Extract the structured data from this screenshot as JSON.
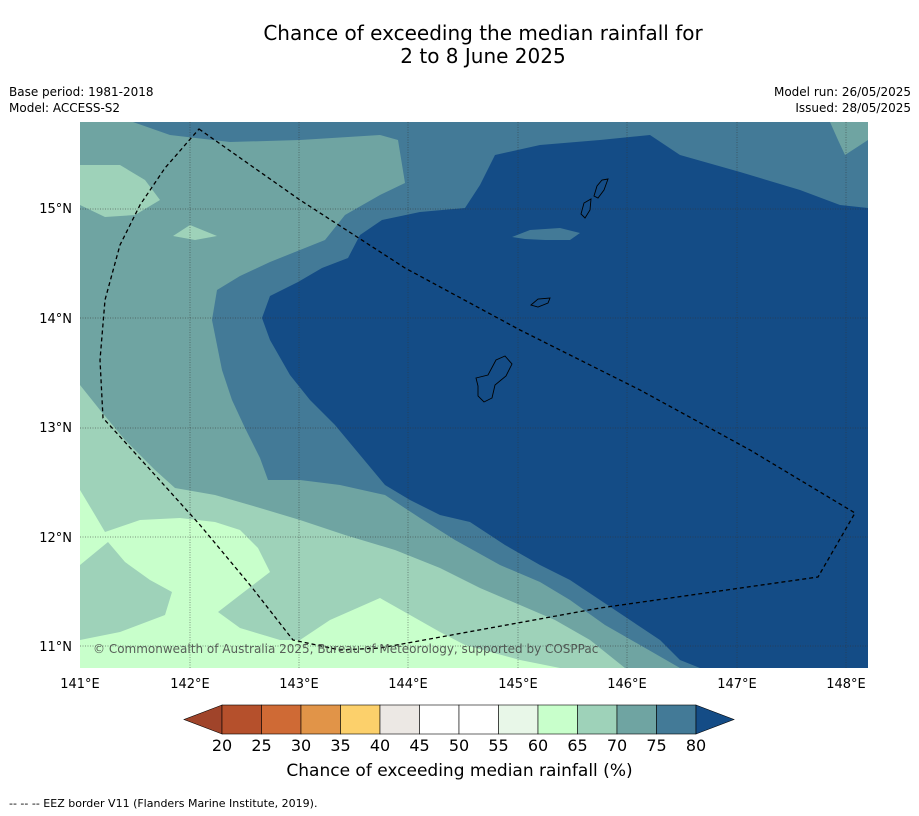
{
  "title_line1": "Chance of exceeding the median rainfall for",
  "title_line2": "2 to 8 June 2025",
  "base_period": "Base period: 1981-2018",
  "model": "Model: ACCESS-S2",
  "model_run": "Model run: 26/05/2025",
  "issued": "Issued: 28/05/2025",
  "copyright": "© Commonwealth of Australia 2025, Bureau of Meteorology, supported by COSPPac",
  "lon_labels": [
    "141°E",
    "142°E",
    "143°E",
    "144°E",
    "145°E",
    "146°E",
    "147°E",
    "148°E"
  ],
  "lat_labels": [
    "15°N",
    "14°N",
    "13°N",
    "12°N",
    "11°N"
  ],
  "colorbar": {
    "title": "Chance of exceeding median rainfall (%)",
    "ticks": [
      "20",
      "25",
      "30",
      "35",
      "40",
      "45",
      "50",
      "55",
      "60",
      "65",
      "70",
      "75",
      "80"
    ],
    "colors": {
      "under": "#a0442a",
      "bins": [
        "#b5502c",
        "#cf6a35",
        "#e19448",
        "#fcd06b",
        "#ece8e4",
        "#ffffff",
        "#ffffff",
        "#e8f7e8",
        "#c8ffcb",
        "#9ed2b9",
        "#6fa4a2",
        "#437a97"
      ],
      "over": "#144c86"
    }
  },
  "footer": "--  --  -- EEZ border V11 (Flanders Marine Institute, 2019).",
  "map_colors": {
    "c60_65": "#c8ffcb",
    "c65_70": "#9ed2b9",
    "c70_75": "#6fa4a2",
    "c75_80": "#437a97",
    "c80": "#144c86"
  }
}
